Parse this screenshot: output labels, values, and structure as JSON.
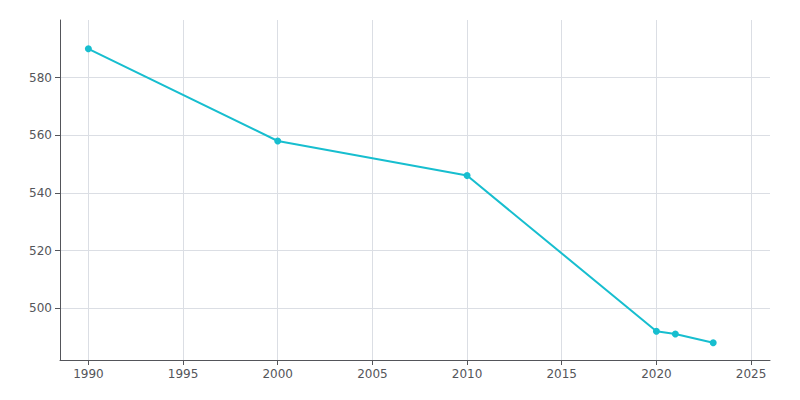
{
  "chart_data": {
    "type": "line",
    "x": [
      1990,
      2000,
      2010,
      2020,
      2021,
      2023
    ],
    "values": [
      590,
      558,
      546,
      492,
      491,
      488
    ],
    "color": "#17BECF",
    "marker": "circle",
    "xlim": [
      1988.5,
      2026
    ],
    "ylim": [
      482,
      600
    ],
    "xticks": [
      1990,
      1995,
      2000,
      2005,
      2010,
      2015,
      2020,
      2025
    ],
    "yticks": [
      500,
      520,
      540,
      560,
      580
    ],
    "grid": true
  }
}
